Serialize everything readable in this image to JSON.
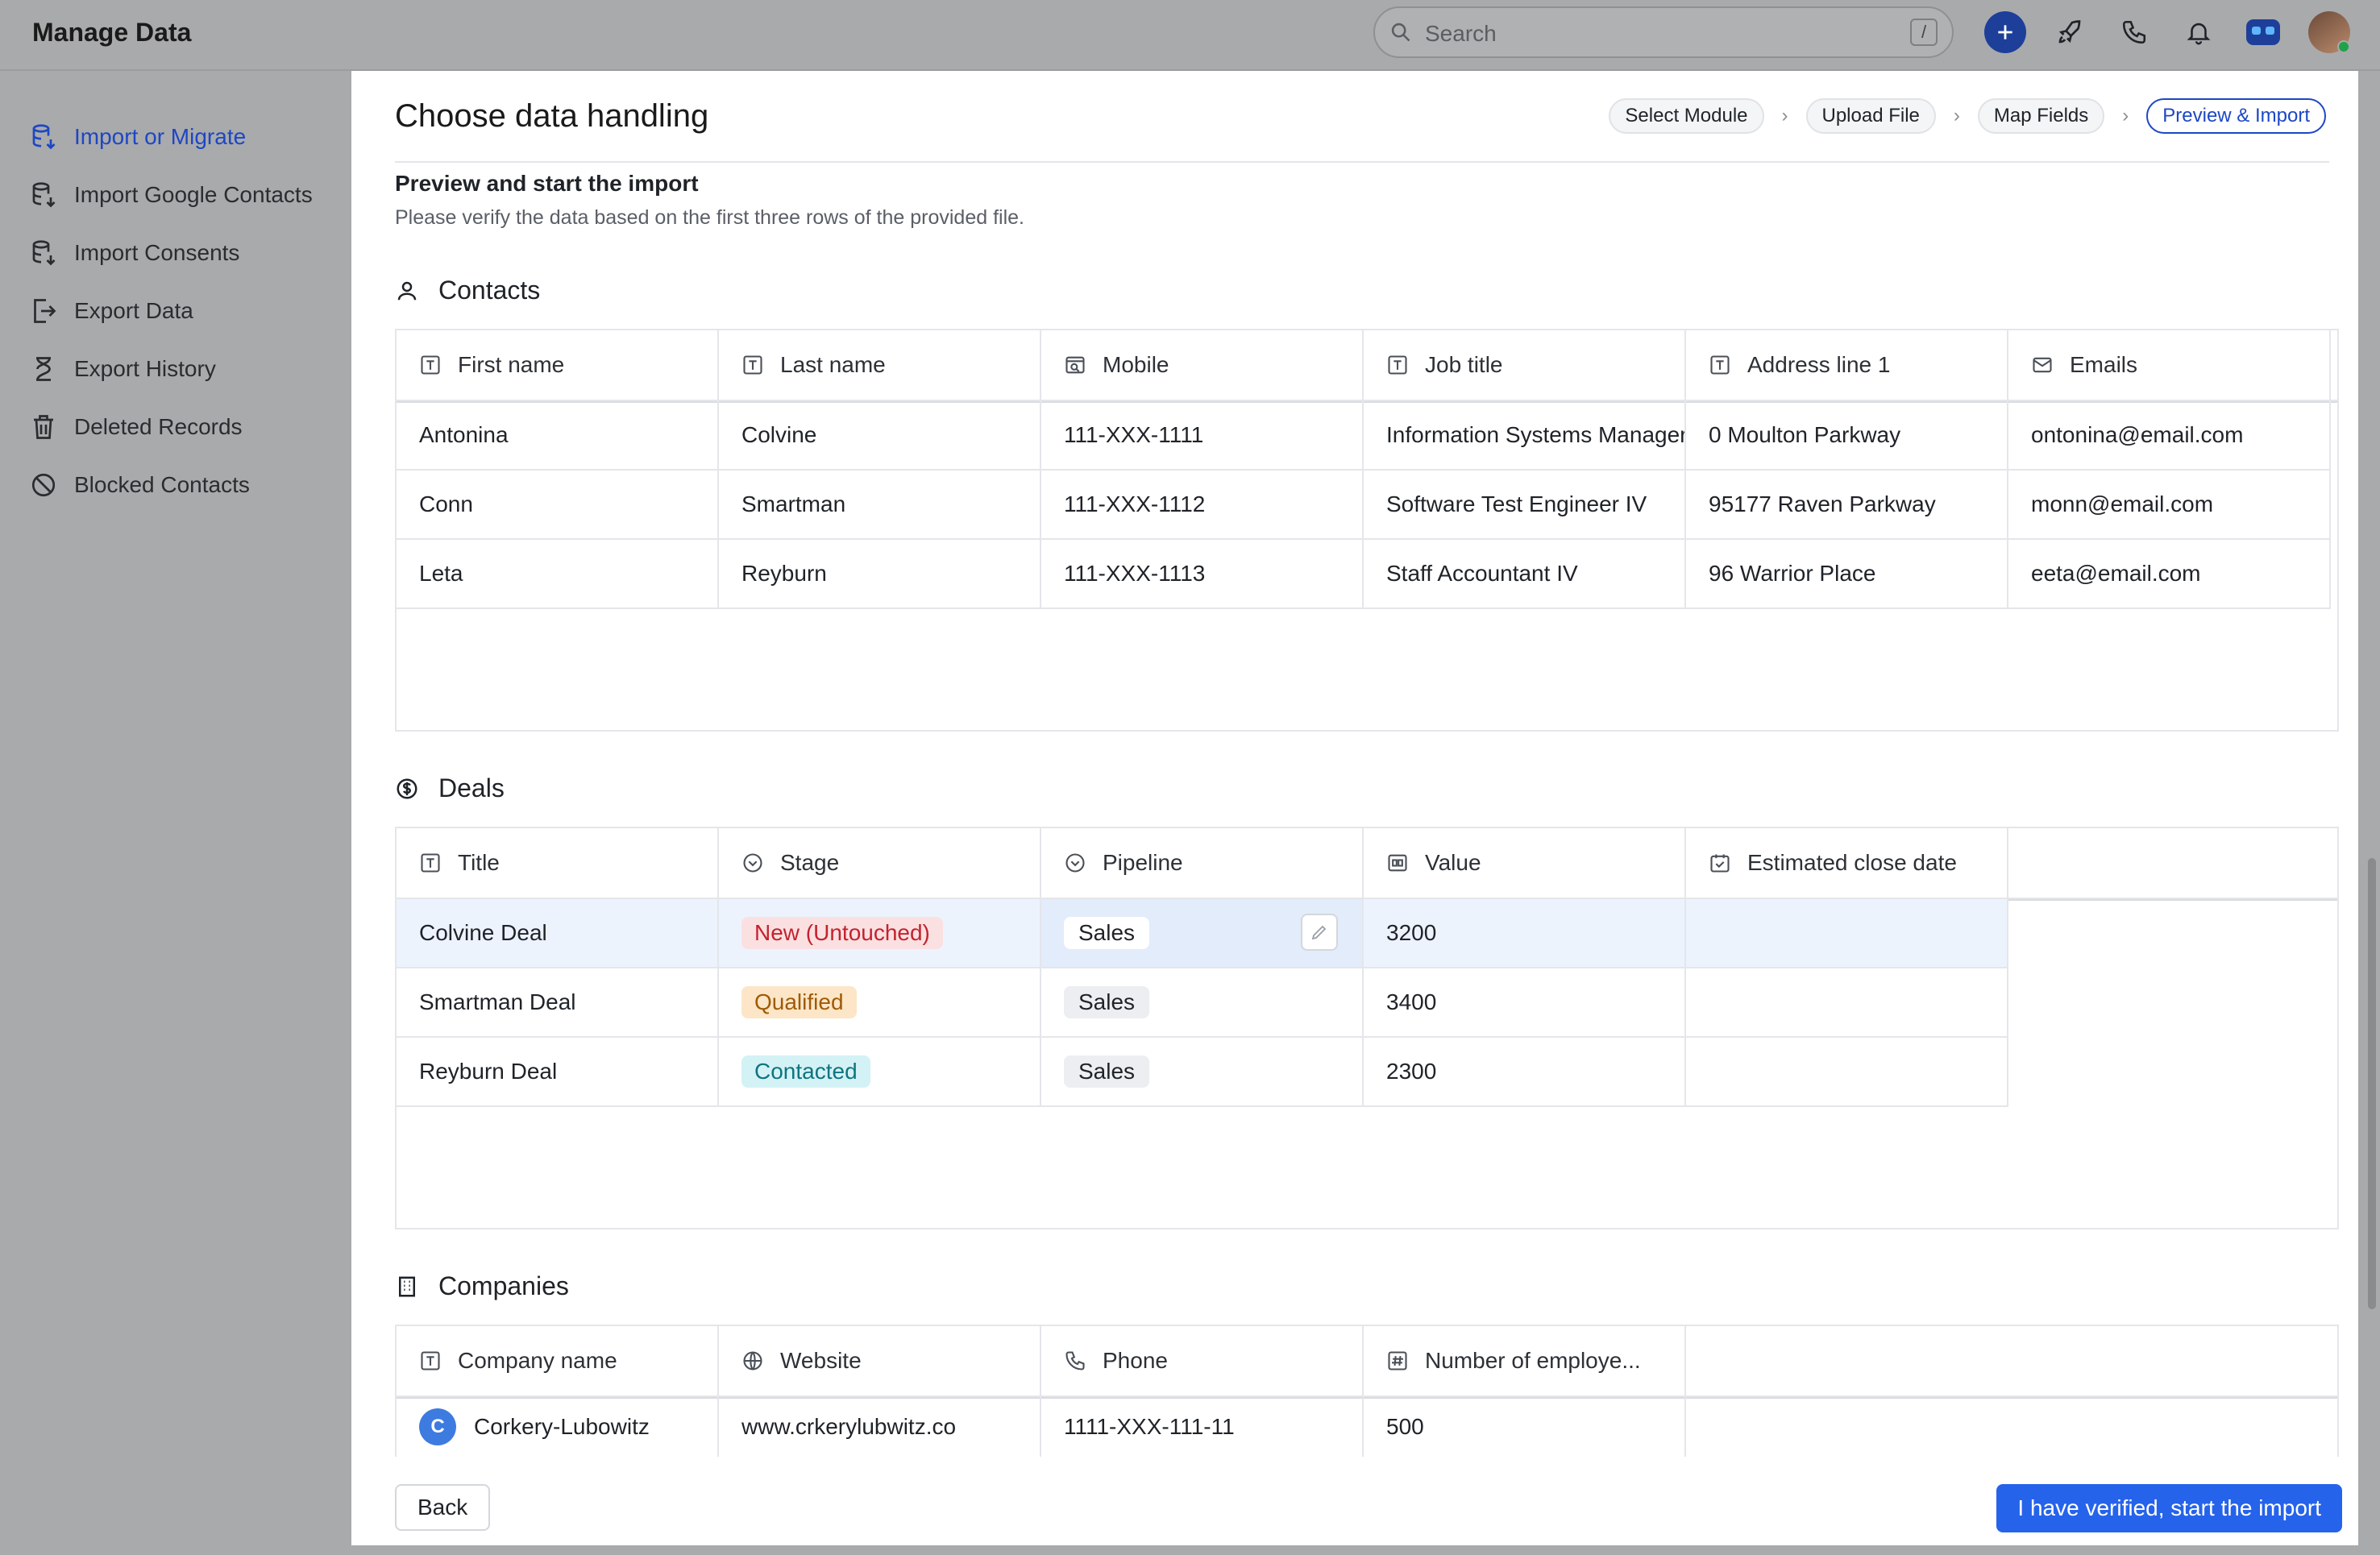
{
  "header": {
    "app_title": "Manage Data",
    "search_placeholder": "Search",
    "search_shortcut": "/"
  },
  "sidebar": {
    "items": [
      {
        "label": "Import or Migrate",
        "icon": "database-import-icon",
        "active": true
      },
      {
        "label": "Import Google Contacts",
        "icon": "database-import-icon"
      },
      {
        "label": "Import Consents",
        "icon": "database-import-icon"
      },
      {
        "label": "Export Data",
        "icon": "export-icon"
      },
      {
        "label": "Export History",
        "icon": "hourglass-icon"
      },
      {
        "label": "Deleted Records",
        "icon": "trash-icon"
      },
      {
        "label": "Blocked Contacts",
        "icon": "blocked-icon"
      }
    ]
  },
  "main": {
    "title": "Choose data handling",
    "steps": [
      "Select Module",
      "Upload File",
      "Map Fields",
      "Preview & Import"
    ],
    "subheading": "Preview and start the import",
    "description": "Please verify the data based on the first three rows of the provided file.",
    "contacts": {
      "title": "Contacts",
      "columns": [
        "First name",
        "Last name",
        "Mobile",
        "Job title",
        "Address line 1",
        "Emails"
      ],
      "rows": [
        [
          "Antonina",
          "Colvine",
          "111-XXX-1111",
          "Information Systems Manager",
          "0 Moulton Parkway",
          "ontonina@email.com"
        ],
        [
          "Conn",
          "Smartman",
          "111-XXX-1112",
          "Software Test Engineer IV",
          "95177 Raven Parkway",
          "monn@email.com"
        ],
        [
          "Leta",
          "Reyburn",
          "111-XXX-1113",
          "Staff Accountant IV",
          "96 Warrior Place",
          "eeta@email.com"
        ]
      ]
    },
    "deals": {
      "title": "Deals",
      "columns": [
        "Title",
        "Stage",
        "Pipeline",
        "Value",
        "Estimated close date"
      ],
      "rows": [
        [
          "Colvine Deal",
          "New (Untouched)",
          "Sales",
          "3200",
          ""
        ],
        [
          "Smartman Deal",
          "Qualified",
          "Sales",
          "3400",
          ""
        ],
        [
          "Reyburn Deal",
          "Contacted",
          "Sales",
          "2300",
          ""
        ]
      ]
    },
    "companies": {
      "title": "Companies",
      "columns": [
        "Company name",
        "Website",
        "Phone",
        "Number of employe..."
      ],
      "rows": [
        [
          "Corkery-Lubowitz",
          "www.crkerylubwitz.co",
          "1111-XXX-111-11",
          "500"
        ]
      ],
      "avatar_letter": "C"
    },
    "back_label": "Back",
    "primary_label": "I have verified, start the import"
  },
  "colors": {
    "accent": "#2563eb",
    "active_nav": "#1d47c4",
    "new_badge": "#fbe0e1",
    "qualified_badge": "#fce6c7",
    "contacted_badge": "#d3f2f5"
  }
}
